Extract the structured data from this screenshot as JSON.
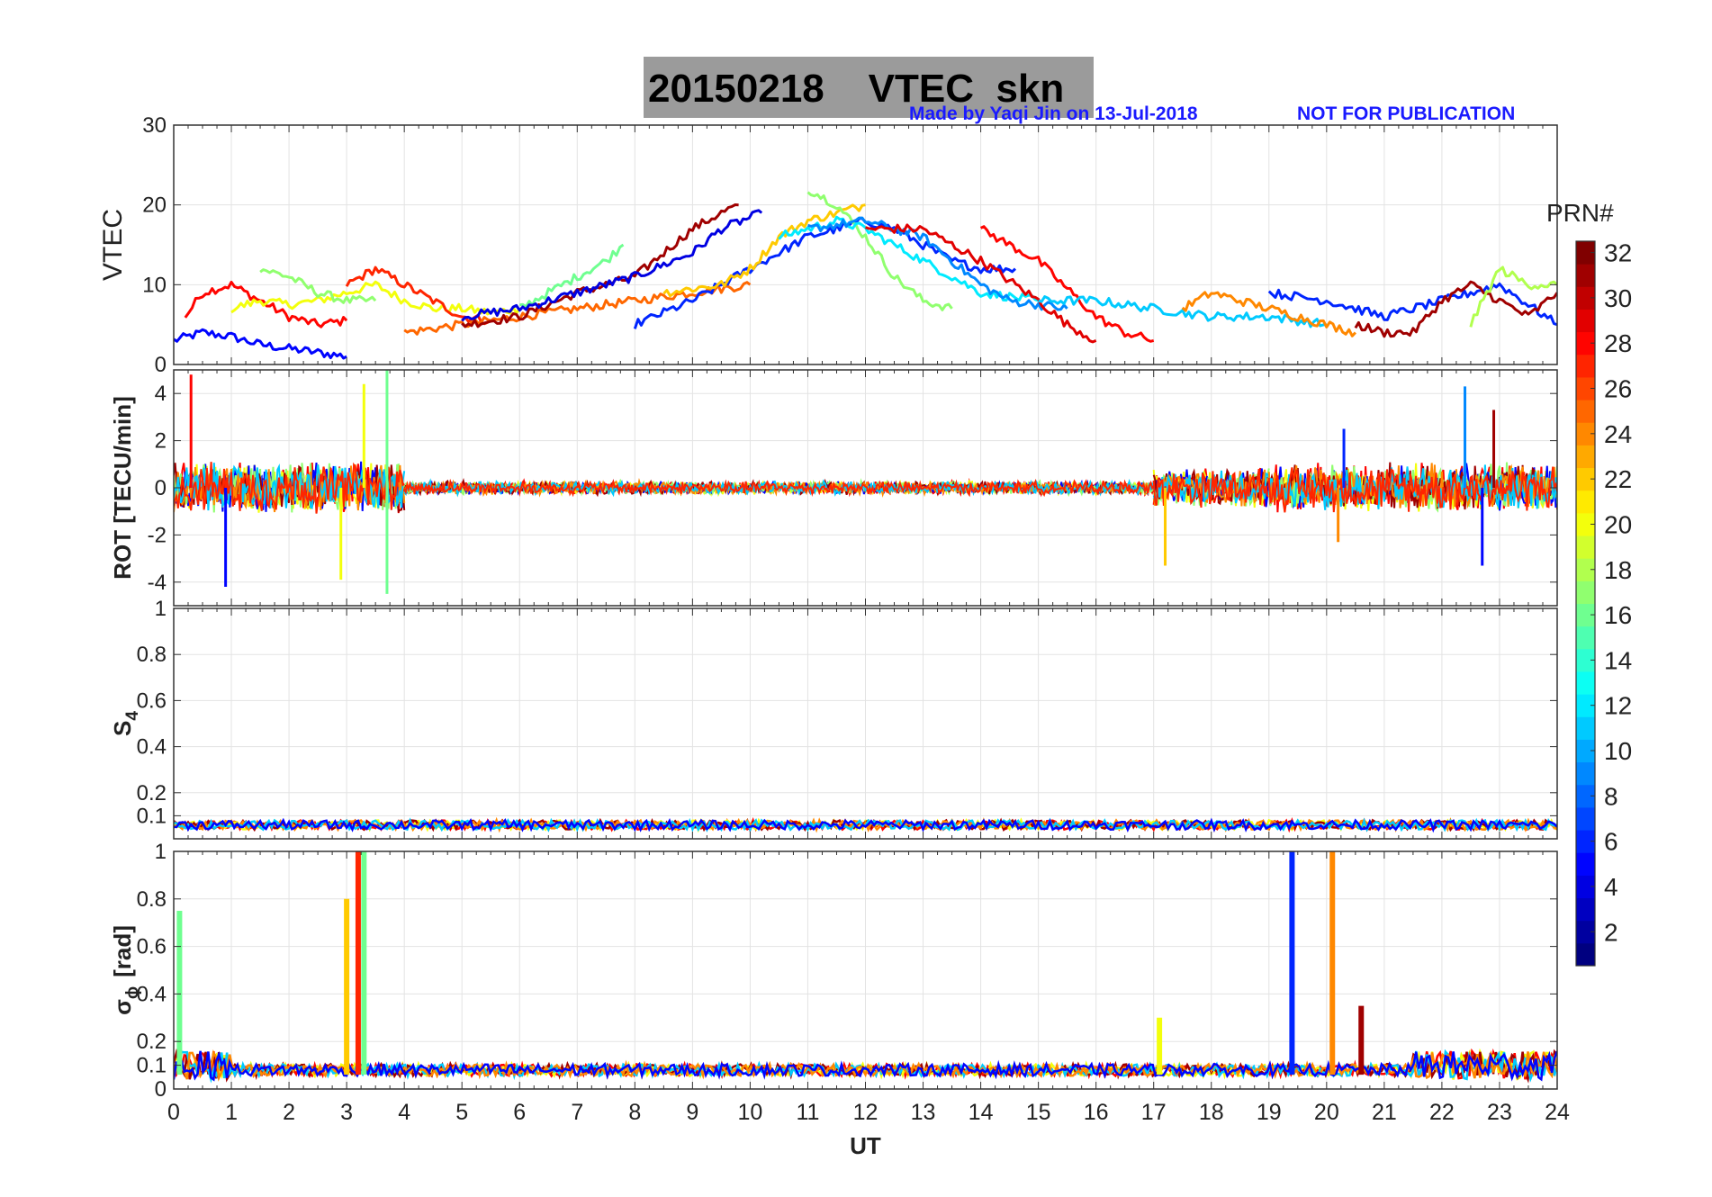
{
  "title": {
    "date": "20150218",
    "name": "VTEC  skn"
  },
  "credit": {
    "left": "Made by Yaqi Jin on 13-Jul-2018",
    "right": "NOT FOR PUBLICATION"
  },
  "chart_data": [
    {
      "type": "line",
      "ylabel": "VTEC",
      "ylim": [
        0,
        30
      ],
      "yticks": [
        0,
        10,
        20,
        30
      ],
      "xlim": [
        0,
        24
      ],
      "grid": true,
      "series_overview": [
        {
          "prn": 5,
          "x": [
            0,
            0.5,
            1,
            1.5,
            2,
            2.5,
            3
          ],
          "y": [
            3,
            4,
            3.5,
            2.5,
            2,
            1.5,
            1
          ]
        },
        {
          "prn": 28,
          "x": [
            0.2,
            0.5,
            1,
            1.5,
            2,
            2.5,
            3
          ],
          "y": [
            6,
            9,
            10,
            8,
            6,
            5,
            5.5
          ]
        },
        {
          "prn": 20,
          "x": [
            1,
            1.5,
            2,
            2.5,
            3,
            3.5,
            4,
            4.5,
            5,
            5.5,
            6
          ],
          "y": [
            7,
            8,
            7.5,
            8,
            9,
            10,
            8,
            7,
            7,
            6.5,
            7
          ]
        },
        {
          "prn": 17,
          "x": [
            1.5,
            2,
            2.5,
            3,
            3.5
          ],
          "y": [
            12,
            11,
            9,
            8,
            8
          ]
        },
        {
          "prn": 27,
          "x": [
            3,
            3.5,
            4,
            4.5,
            5,
            5.5
          ],
          "y": [
            10,
            12,
            10,
            8,
            6,
            5.5
          ]
        },
        {
          "prn": 25,
          "x": [
            4,
            5,
            6,
            7,
            8,
            9,
            10
          ],
          "y": [
            4,
            5,
            6,
            7,
            8,
            9,
            10
          ]
        },
        {
          "prn": 31,
          "x": [
            5,
            6,
            7,
            8,
            8.5,
            9,
            9.5,
            9.8
          ],
          "y": [
            5,
            6,
            9,
            11,
            14,
            17,
            19,
            20
          ]
        },
        {
          "prn": 16,
          "x": [
            6,
            6.5,
            7,
            7.5,
            7.8
          ],
          "y": [
            7,
            9,
            11,
            13,
            15
          ]
        },
        {
          "prn": 4,
          "x": [
            5,
            6,
            7,
            8,
            9,
            9.5,
            10.2
          ],
          "y": [
            6,
            7,
            9,
            11,
            14,
            17,
            19
          ]
        },
        {
          "prn": 6,
          "x": [
            8,
            9,
            10,
            11,
            12,
            12.5,
            13,
            13.5,
            14,
            14.6
          ],
          "y": [
            5,
            8,
            12,
            16,
            18,
            17,
            15,
            13,
            12,
            12
          ]
        },
        {
          "prn": 22,
          "x": [
            8.5,
            9.5,
            10,
            10.5,
            11,
            11.5,
            12
          ],
          "y": [
            9,
            10,
            12,
            16,
            18,
            19,
            20
          ]
        },
        {
          "prn": 17,
          "x": [
            11,
            11.5,
            12,
            12.5,
            13,
            13.5
          ],
          "y": [
            22,
            20,
            16,
            11,
            8,
            7
          ]
        },
        {
          "prn": 12,
          "x": [
            10.5,
            11,
            11.5,
            12,
            12.5,
            13,
            13.5,
            14,
            15
          ],
          "y": [
            16,
            17,
            18,
            17,
            15,
            13,
            11,
            9,
            8
          ]
        },
        {
          "prn": 9,
          "x": [
            11,
            12,
            13,
            13.5,
            14,
            14.5,
            15.5
          ],
          "y": [
            17,
            18,
            16,
            13,
            10,
            8,
            7
          ]
        },
        {
          "prn": 29,
          "x": [
            12,
            13,
            14,
            15,
            15.5,
            16
          ],
          "y": [
            17,
            17,
            13,
            8,
            5,
            3
          ]
        },
        {
          "prn": 28,
          "x": [
            14,
            15,
            16,
            16.5,
            17
          ],
          "y": [
            17,
            13,
            6,
            4,
            3
          ]
        },
        {
          "prn": 11,
          "x": [
            15,
            16,
            17,
            18,
            19,
            20
          ],
          "y": [
            8,
            8,
            7,
            6,
            6,
            5
          ]
        },
        {
          "prn": 24,
          "x": [
            17.5,
            18,
            18.5,
            19,
            19.5,
            20,
            20.5
          ],
          "y": [
            7,
            9,
            8,
            7,
            6,
            5,
            4
          ]
        },
        {
          "prn": 6,
          "x": [
            19,
            20,
            21,
            22,
            23,
            24
          ],
          "y": [
            9,
            8,
            6,
            8,
            10,
            5
          ]
        },
        {
          "prn": 31,
          "x": [
            20.5,
            21,
            21.5,
            22,
            22.5,
            23,
            23.5,
            24
          ],
          "y": [
            5,
            4,
            4,
            8,
            10,
            8,
            6,
            9
          ]
        },
        {
          "prn": 18,
          "x": [
            22.5,
            23,
            23.5,
            24
          ],
          "y": [
            5,
            12,
            10,
            10
          ]
        }
      ]
    },
    {
      "type": "line",
      "ylabel": "ROT [TECU/min]",
      "ylim": [
        -5,
        5
      ],
      "yticks": [
        -4,
        -2,
        0,
        2,
        4
      ],
      "xlim": [
        0,
        24
      ],
      "grid": true,
      "noise_segments": [
        {
          "x": [
            0,
            4
          ],
          "amplitude": 1.2
        },
        {
          "x": [
            4,
            17
          ],
          "amplitude": 0.3
        },
        {
          "x": [
            17,
            19
          ],
          "amplitude": 0.9
        },
        {
          "x": [
            19,
            24
          ],
          "amplitude": 1.1
        }
      ],
      "spikes": [
        {
          "x": 0.3,
          "y": 4.8
        },
        {
          "x": 0.9,
          "y": -4.2
        },
        {
          "x": 2.9,
          "y": -3.9
        },
        {
          "x": 3.3,
          "y": 4.4
        },
        {
          "x": 3.7,
          "y": 5.0
        },
        {
          "x": 3.7,
          "y": -4.5
        },
        {
          "x": 17.2,
          "y": -3.3
        },
        {
          "x": 20.3,
          "y": 2.5
        },
        {
          "x": 20.2,
          "y": -2.3
        },
        {
          "x": 22.4,
          "y": 4.3
        },
        {
          "x": 22.7,
          "y": -3.3
        },
        {
          "x": 22.9,
          "y": 3.3
        }
      ]
    },
    {
      "type": "line",
      "ylabel": "S",
      "ylabel_sub": "4",
      "ylim": [
        0,
        1
      ],
      "yticks": [
        0.1,
        0.2,
        0.4,
        0.6,
        0.8,
        1
      ],
      "xlim": [
        0,
        24
      ],
      "grid": true,
      "baseline": 0.06
    },
    {
      "type": "line",
      "ylabel": "σ",
      "ylabel_sub": "ϕ",
      "ylabel_unit": "[rad]",
      "ylim": [
        0,
        1
      ],
      "yticks": [
        0,
        0.1,
        0.2,
        0.4,
        0.6,
        0.8,
        1
      ],
      "xlim": [
        0,
        24
      ],
      "xticks": [
        0,
        1,
        2,
        3,
        4,
        5,
        6,
        7,
        8,
        9,
        10,
        11,
        12,
        13,
        14,
        15,
        16,
        17,
        18,
        19,
        20,
        21,
        22,
        23,
        24
      ],
      "xlabel": "UT",
      "grid": true,
      "baseline": 0.08,
      "spikes": [
        {
          "x": 0.1,
          "y": 0.75
        },
        {
          "x": 3.0,
          "y": 0.8
        },
        {
          "x": 3.2,
          "y": 1.0
        },
        {
          "x": 3.3,
          "y": 1.0
        },
        {
          "x": 17.1,
          "y": 0.3
        },
        {
          "x": 19.4,
          "y": 1.0
        },
        {
          "x": 20.1,
          "y": 1.0
        },
        {
          "x": 20.6,
          "y": 0.35
        }
      ]
    }
  ],
  "colorbar": {
    "label": "PRN#",
    "range": [
      1,
      32
    ],
    "ticks": [
      2,
      4,
      6,
      8,
      10,
      12,
      14,
      16,
      18,
      20,
      22,
      24,
      26,
      28,
      30,
      32
    ],
    "colormap": "jet"
  }
}
